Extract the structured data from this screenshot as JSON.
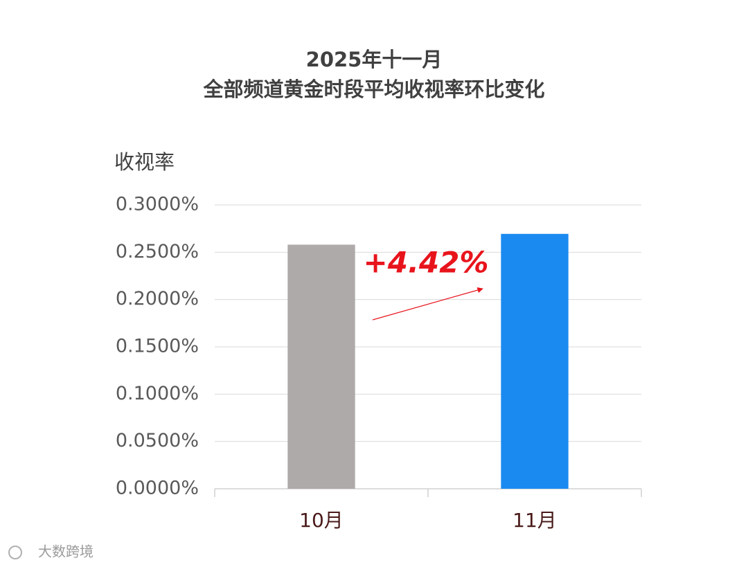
{
  "chart_data": {
    "type": "bar",
    "title": "2025年十一月",
    "subtitle": "全部频道黄金时段平均收视率环比变化",
    "y_label": "收视率",
    "categories": [
      "10月",
      "11月"
    ],
    "values": [
      0.258,
      0.2694
    ],
    "colors": [
      "#aeaaa9",
      "#1b8af0"
    ],
    "ylim": [
      0,
      0.3
    ],
    "yticks": [
      {
        "value": 0,
        "label": "0.0000%"
      },
      {
        "value": 0.05,
        "label": "0.0500%"
      },
      {
        "value": 0.1,
        "label": "0.1000%"
      },
      {
        "value": 0.15,
        "label": "0.1500%"
      },
      {
        "value": 0.2,
        "label": "0.2000%"
      },
      {
        "value": 0.25,
        "label": "0.2500%"
      },
      {
        "value": 0.3,
        "label": "0.3000%"
      }
    ],
    "grid": true,
    "annotation": "+4.42%",
    "watermark": "大数跨境"
  }
}
